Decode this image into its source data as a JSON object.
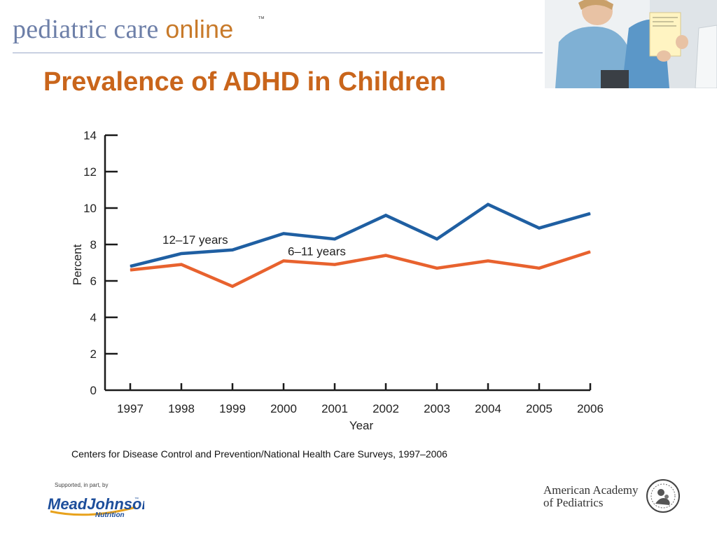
{
  "brand": {
    "word1": "pediatric care ",
    "word2": "online",
    "tm": "™"
  },
  "slide": {
    "title": "Prevalence of ADHD in Children",
    "source": "Centers for Disease Control and Prevention/National Health Care Surveys, 1997–2006"
  },
  "footer": {
    "supported": "Supported, in part, by",
    "sponsor": "MeadJohnson",
    "sponsor_sub": "Nutrition",
    "org_line1": "American Academy",
    "org_line2": "of Pediatrics"
  },
  "colors": {
    "accent": "#c9651b",
    "brand_blue": "#6d7fa8",
    "series_older": "#1f5fa2",
    "series_younger": "#e8622e"
  },
  "chart_data": {
    "type": "line",
    "xlabel": "Year",
    "ylabel": "Percent",
    "x": [
      1997,
      1998,
      1999,
      2000,
      2001,
      2002,
      2003,
      2004,
      2005,
      2006
    ],
    "ylim": [
      0,
      14
    ],
    "yticks": [
      0,
      2,
      4,
      6,
      8,
      10,
      12,
      14
    ],
    "grid": false,
    "series": [
      {
        "name": "12–17 years",
        "color": "#1f5fa2",
        "values": [
          6.8,
          7.5,
          7.7,
          8.6,
          8.3,
          9.6,
          8.3,
          10.2,
          8.9,
          9.7
        ]
      },
      {
        "name": "6–11 years",
        "color": "#e8622e",
        "values": [
          6.6,
          6.9,
          5.7,
          7.1,
          6.9,
          7.4,
          6.7,
          7.1,
          6.7,
          7.6
        ]
      }
    ]
  }
}
